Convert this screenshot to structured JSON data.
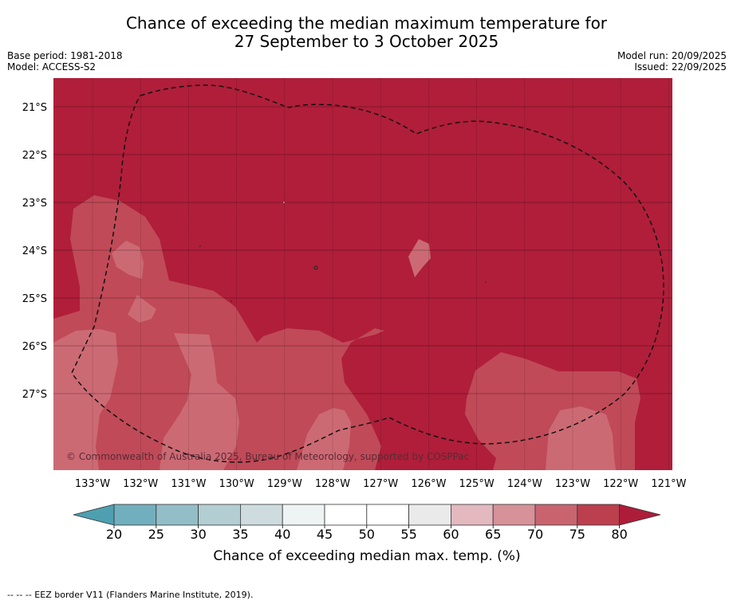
{
  "title": {
    "line1": "Chance of exceeding the median maximum temperature for",
    "line2": "27 September to 3 October 2025"
  },
  "meta": {
    "base_period": "Base period: 1981-2018",
    "model": "Model: ACCESS-S2",
    "model_run": "Model run: 20/09/2025",
    "issued": "Issued: 22/09/2025"
  },
  "map": {
    "lat_labels": [
      "21°S",
      "22°S",
      "23°S",
      "24°S",
      "25°S",
      "26°S",
      "27°S"
    ],
    "lon_labels": [
      "133°W",
      "132°W",
      "131°W",
      "130°W",
      "129°W",
      "128°W",
      "127°W",
      "126°W",
      "125°W",
      "124°W",
      "123°W",
      "122°W",
      "121°W"
    ],
    "copyright": "© Commonwealth of Australia 2025, Bureau of Meteorology, supported by COSPPac",
    "colors": {
      "above_80": "#b01e3a",
      "band_75_80": "#c04a58",
      "band_70_75": "#cc6a74",
      "band_65_70": "#d69095"
    }
  },
  "colorbar": {
    "ticks": [
      "20",
      "25",
      "30",
      "35",
      "40",
      "45",
      "50",
      "55",
      "60",
      "65",
      "70",
      "75",
      "80"
    ],
    "colors": [
      "#4ea0b0",
      "#72afbe",
      "#93bec8",
      "#b2ced2",
      "#cedcdf",
      "#eef3f4",
      "#ffffff",
      "#ffffff",
      "#ebeaeb",
      "#e3b8bf",
      "#d79198",
      "#c9646f",
      "#bc3f4e",
      "#ad1d3a"
    ],
    "label": "Chance of exceeding median max. temp. (%)"
  },
  "footer": "-- -- -- EEZ border V11 (Flanders Marine Institute, 2019)."
}
